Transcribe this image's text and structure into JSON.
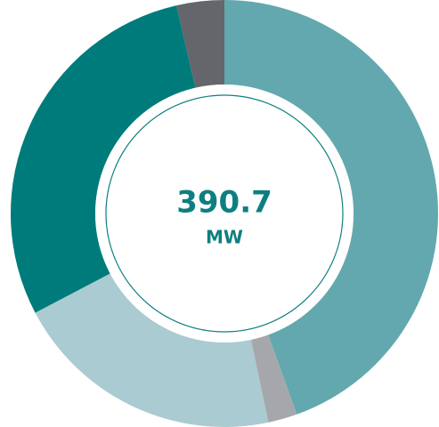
{
  "chart_data": {
    "type": "donut",
    "center_value": "390.7",
    "center_unit": "MW",
    "values": [
      44.5,
      2.2,
      20.6,
      29.1,
      3.6
    ],
    "colors": [
      "#63a8ae",
      "#a6a7aa",
      "#a9cbd1",
      "#007b7b",
      "#64666b"
    ]
  }
}
